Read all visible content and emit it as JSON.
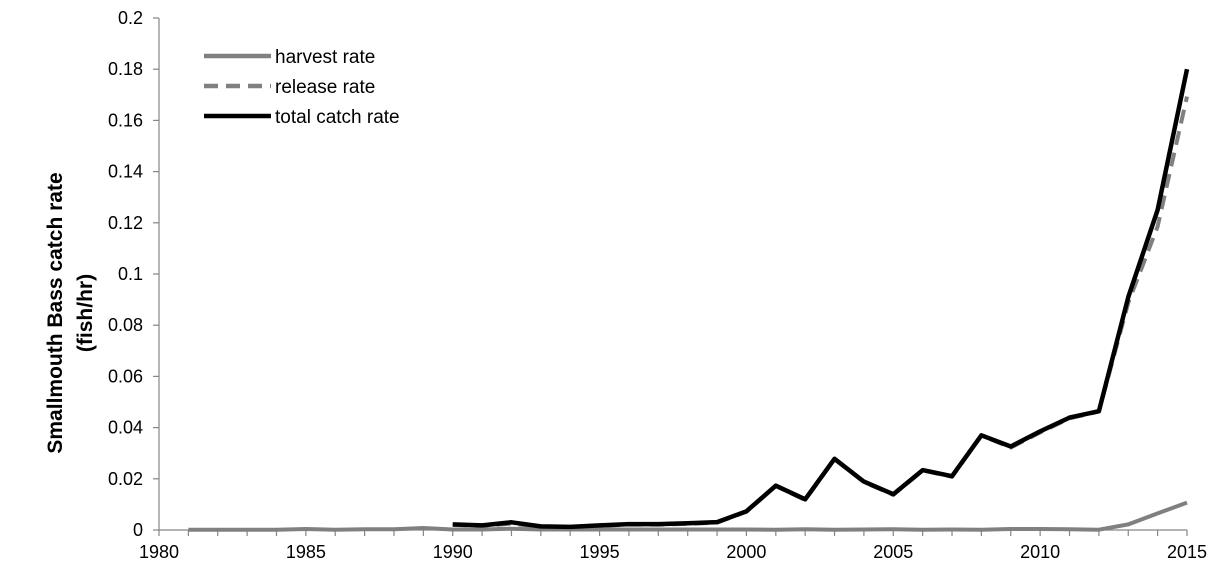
{
  "chart_data": {
    "type": "line",
    "title": "",
    "ylabel_lines": [
      "Smallmouth Bass catch rate",
      "(fish/hr)"
    ],
    "xlabel": "",
    "xlim": [
      1980,
      2015
    ],
    "ylim": [
      0,
      0.2
    ],
    "x_ticks": [
      1980,
      1985,
      1990,
      1995,
      2000,
      2005,
      2010,
      2015
    ],
    "y_ticks": [
      0,
      0.02,
      0.04,
      0.06,
      0.08,
      0.1,
      0.12,
      0.14,
      0.16,
      0.18,
      0.2
    ],
    "grid": false,
    "legend_position": "top-left",
    "series": [
      {
        "name": "harvest rate",
        "color": "#808080",
        "style": "solid",
        "x": [
          1981,
          1982,
          1983,
          1984,
          1985,
          1986,
          1987,
          1988,
          1989,
          1990,
          1991,
          1992,
          1993,
          1994,
          1995,
          1996,
          1997,
          1998,
          1999,
          2000,
          2001,
          2002,
          2003,
          2004,
          2005,
          2006,
          2007,
          2008,
          2009,
          2010,
          2011,
          2012,
          2013,
          2014,
          2015
        ],
        "y": [
          0.0001,
          0.0001,
          0.0001,
          0.0001,
          0.0004,
          0.0001,
          0.0003,
          0.0003,
          0.0008,
          0.0002,
          0.0002,
          0.0005,
          0.0002,
          0.0002,
          0.0002,
          0.0002,
          0.0002,
          0.0002,
          0.0002,
          0.0002,
          0.0001,
          0.0003,
          0.0001,
          0.0002,
          0.0003,
          0.0001,
          0.0002,
          0.0001,
          0.0004,
          0.0004,
          0.0003,
          0.0001,
          0.0022,
          0.0065,
          0.0107
        ]
      },
      {
        "name": "release rate",
        "color": "#808080",
        "style": "dashed",
        "x": [
          1990,
          1991,
          1992,
          1993,
          1994,
          1995,
          1996,
          1997,
          1998,
          1999,
          2000,
          2001,
          2002,
          2003,
          2004,
          2005,
          2006,
          2007,
          2008,
          2009,
          2010,
          2011,
          2012,
          2013,
          2014,
          2015
        ],
        "y": [
          0.002,
          0.0016,
          0.0025,
          0.0012,
          0.001,
          0.0016,
          0.0021,
          0.0021,
          0.0024,
          0.0029,
          0.0071,
          0.0172,
          0.0117,
          0.0277,
          0.0187,
          0.0137,
          0.0233,
          0.0208,
          0.0369,
          0.0322,
          0.0381,
          0.0436,
          0.0463,
          0.0888,
          0.1185,
          0.1693
        ]
      },
      {
        "name": "total catch rate",
        "color": "#000000",
        "style": "solid",
        "x": [
          1990,
          1991,
          1992,
          1993,
          1994,
          1995,
          1996,
          1997,
          1998,
          1999,
          2000,
          2001,
          2002,
          2003,
          2004,
          2005,
          2006,
          2007,
          2008,
          2009,
          2010,
          2011,
          2012,
          2013,
          2014,
          2015
        ],
        "y": [
          0.0022,
          0.0018,
          0.003,
          0.0014,
          0.0012,
          0.0018,
          0.0023,
          0.0023,
          0.0026,
          0.0031,
          0.0073,
          0.0173,
          0.012,
          0.0278,
          0.0189,
          0.014,
          0.0234,
          0.021,
          0.037,
          0.0326,
          0.0385,
          0.0439,
          0.0464,
          0.091,
          0.125,
          0.18
        ]
      }
    ]
  }
}
